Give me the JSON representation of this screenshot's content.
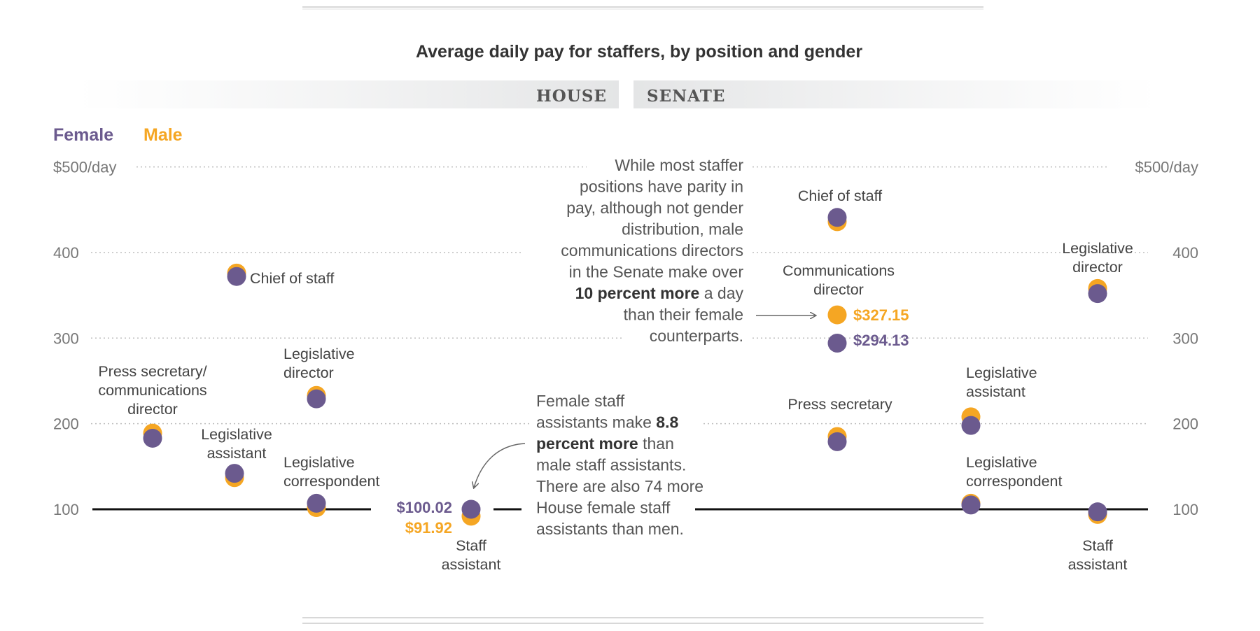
{
  "chart_data": {
    "type": "scatter",
    "title": "Average daily pay for staffers, by position and gender",
    "panels": [
      "HOUSE",
      "SENATE"
    ],
    "legend": [
      {
        "name": "Female",
        "color": "#6b5a8e"
      },
      {
        "name": "Male",
        "color": "#f5a623"
      }
    ],
    "y_axis": {
      "ylim": [
        80,
        500
      ],
      "ticks": [
        100,
        200,
        300,
        400,
        500
      ],
      "tick_labels": [
        "100",
        "200",
        "300",
        "400",
        "$500/day"
      ],
      "grid": "dotted",
      "baseline": 100
    },
    "house": [
      {
        "position": "Press secretary/ communications director",
        "label_lines": [
          "Press secretary/",
          "communications",
          "director"
        ],
        "female": 183,
        "male": 189
      },
      {
        "position": "Chief of staff",
        "label_lines": [
          "Chief of staff"
        ],
        "female": 372,
        "male": 376
      },
      {
        "position": "Legislative assistant",
        "label_lines": [
          "Legislative",
          "assistant"
        ],
        "female": 142,
        "male": 137
      },
      {
        "position": "Legislative director",
        "label_lines": [
          "Legislative",
          "director"
        ],
        "female": 229,
        "male": 233
      },
      {
        "position": "Legislative correspondent",
        "label_lines": [
          "Legislative",
          "correspondent"
        ],
        "female": 107,
        "male": 102
      },
      {
        "position": "Staff assistant",
        "label_lines": [
          "Staff",
          "assistant"
        ],
        "female": 100.02,
        "male": 91.92
      }
    ],
    "senate": [
      {
        "position": "Chief of staff",
        "label_lines": [
          "Chief of staff"
        ],
        "female": 441,
        "male": 436
      },
      {
        "position": "Communications director",
        "label_lines": [
          "Communications",
          "director"
        ],
        "female": 294.13,
        "male": 327.15
      },
      {
        "position": "Press secretary",
        "label_lines": [
          "Press secretary"
        ],
        "female": 179,
        "male": 185
      },
      {
        "position": "Legislative assistant",
        "label_lines": [
          "Legislative",
          "assistant"
        ],
        "female": 198,
        "male": 208
      },
      {
        "position": "Legislative correspondent",
        "label_lines": [
          "Legislative",
          "correspondent"
        ],
        "female": 105,
        "male": 107
      },
      {
        "position": "Legislative director",
        "label_lines": [
          "Legislative",
          "director"
        ],
        "female": 352,
        "male": 358
      },
      {
        "position": "Staff assistant",
        "label_lines": [
          "Staff",
          "assistant"
        ],
        "female": 97,
        "male": 94
      }
    ],
    "value_labels": {
      "house_female": "$100.02",
      "house_male": "$91.92",
      "senate_male": "$327.15",
      "senate_female": "$294.13"
    },
    "annotations": [
      {
        "id": "senate-note",
        "lines": [
          [
            {
              "t": "While most staffer"
            }
          ],
          [
            {
              "t": "positions have parity in"
            }
          ],
          [
            {
              "t": "pay, although not gender"
            }
          ],
          [
            {
              "t": "distribution, male"
            }
          ],
          [
            {
              "t": "communications directors"
            }
          ],
          [
            {
              "t": "in the Senate make over"
            }
          ],
          [
            {
              "t": "10 percent more",
              "b": true
            },
            {
              "t": " a day"
            }
          ],
          [
            {
              "t": "than their female"
            }
          ],
          [
            {
              "t": "counterparts."
            }
          ]
        ]
      },
      {
        "id": "house-note",
        "lines": [
          [
            {
              "t": "Female staff"
            }
          ],
          [
            {
              "t": "assistants make "
            },
            {
              "t": "8.8",
              "b": true
            }
          ],
          [
            {
              "t": "percent more",
              "b": true
            },
            {
              "t": " than"
            }
          ],
          [
            {
              "t": "male staff assistants."
            }
          ],
          [
            {
              "t": "There are also 74 more"
            }
          ],
          [
            {
              "t": "House female staff"
            }
          ],
          [
            {
              "t": "assistants than men."
            }
          ]
        ]
      }
    ]
  }
}
